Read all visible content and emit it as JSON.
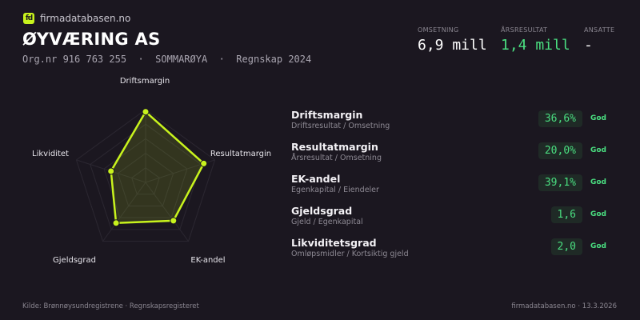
{
  "brand": {
    "logo_text": "fd",
    "name": "firmadatabasen.no",
    "accent": "#c8f31d"
  },
  "company": {
    "name": "ØYVÆRING AS",
    "subtitle": "Org.nr 916 763 255  ·  SOMMARØYA  ·  Regnskap 2024"
  },
  "kpis": [
    {
      "label": "OMSETNING",
      "value": "6,9 mill",
      "color": "#ffffff"
    },
    {
      "label": "ÅRSRESULTAT",
      "value": "1,4 mill",
      "color": "#4ade80"
    },
    {
      "label": "ANSATTE",
      "value": "-",
      "color": "#ffffff"
    }
  ],
  "chart_data": {
    "type": "radar",
    "categories": [
      "Driftsmargin",
      "Resultatmargin",
      "EK-andel",
      "Gjeldsgrad",
      "Likviditet"
    ],
    "values": [
      0.97,
      0.84,
      0.65,
      0.69,
      0.5
    ],
    "range": [
      0,
      1
    ],
    "rings": 5,
    "color": "#c8f31d"
  },
  "metrics": [
    {
      "name": "Driftsmargin",
      "desc": "Driftsresultat / Omsetning",
      "value": "36,6%",
      "status": "God"
    },
    {
      "name": "Resultatmargin",
      "desc": "Årsresultat / Omsetning",
      "value": "20,0%",
      "status": "God"
    },
    {
      "name": "EK-andel",
      "desc": "Egenkapital / Eiendeler",
      "value": "39,1%",
      "status": "God"
    },
    {
      "name": "Gjeldsgrad",
      "desc": "Gjeld / Egenkapital",
      "value": "1,6",
      "status": "God"
    },
    {
      "name": "Likviditetsgrad",
      "desc": "Omløpsmidler / Kortsiktig gjeld",
      "value": "2,0",
      "status": "God"
    }
  ],
  "footer": {
    "source": "Kilde: Brønnøysundregistrene · Regnskapsregisteret",
    "right": "firmadatabasen.no · 13.3.2026"
  }
}
